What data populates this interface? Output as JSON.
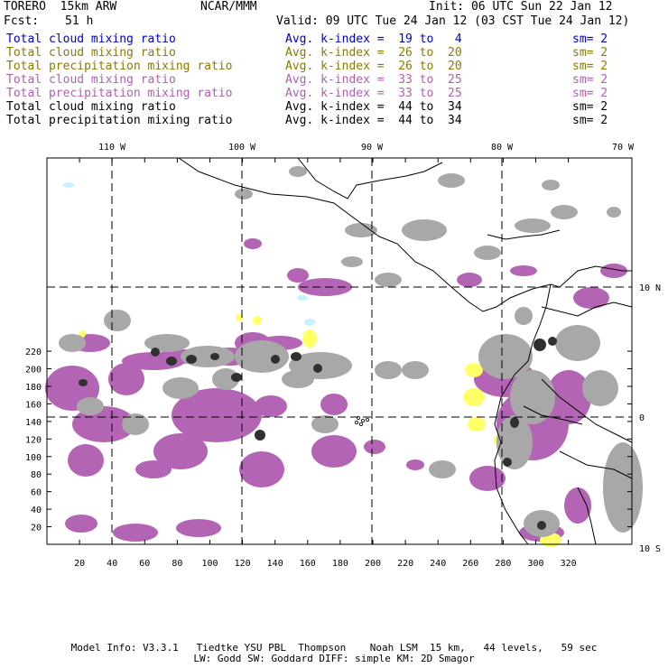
{
  "header": {
    "title_left": "TORERO  15km ARW",
    "center": "NCAR/MMM",
    "init": "Init: 06 UTC Sun 22 Jan 12",
    "fcst_label": "Fcst:",
    "fcst_value": "51 h",
    "valid": "Valid: 09 UTC Tue 24 Jan 12 (03 CST Tue 24 Jan 12)"
  },
  "legend": [
    {
      "field": "Total cloud mixing ratio",
      "kindex": "Avg. k-index =  19 to   4",
      "sm": "sm= 2",
      "color": "#0000cc"
    },
    {
      "field": "Total cloud mixing ratio",
      "kindex": "Avg. k-index =  26 to  20",
      "sm": "sm= 2",
      "color": "#8a7a00"
    },
    {
      "field": "Total precipitation mixing ratio",
      "kindex": "Avg. k-index =  26 to  20",
      "sm": "sm= 2",
      "color": "#8a7a00"
    },
    {
      "field": "Total cloud mixing ratio",
      "kindex": "Avg. k-index =  33 to  25",
      "sm": "sm= 2",
      "color": "#b060b0"
    },
    {
      "field": "Total precipitation mixing ratio",
      "kindex": "Avg. k-index =  33 to  25",
      "sm": "sm= 2",
      "color": "#b060b0"
    },
    {
      "field": "Total cloud mixing ratio",
      "kindex": "Avg. k-index =  44 to  34",
      "sm": "sm= 2",
      "color": "#000000"
    },
    {
      "field": "Total precipitation mixing ratio",
      "kindex": "Avg. k-index =  44 to  34",
      "sm": "sm= 2",
      "color": "#000000"
    }
  ],
  "map": {
    "lon_labels": [
      "110 W",
      "100 W",
      "90 W",
      "80 W",
      "70 W"
    ],
    "lat_labels": [
      "10 N",
      "0",
      "10 S"
    ],
    "x_ticks": [
      "20",
      "40",
      "60",
      "80",
      "100",
      "120",
      "140",
      "160",
      "180",
      "200",
      "220",
      "240",
      "260",
      "280",
      "300",
      "320"
    ],
    "y_ticks": [
      "20",
      "40",
      "60",
      "80",
      "100",
      "120",
      "140",
      "160",
      "180",
      "200",
      "220"
    ],
    "colors": {
      "purple": "#b464b4",
      "yellow": "#ffff66",
      "gray": "#a8a8a8",
      "dark": "#303030",
      "cyan": "#c8f0ff",
      "coast": "#000000"
    }
  },
  "footer": {
    "line1": "Model Info: V3.3.1   Tiedtke YSU PBL  Thompson    Noah LSM  15 km,   44 levels,   59 sec",
    "line2": "LW: Godd SW: Goddard DIFF: simple KM: 2D Smagor"
  }
}
